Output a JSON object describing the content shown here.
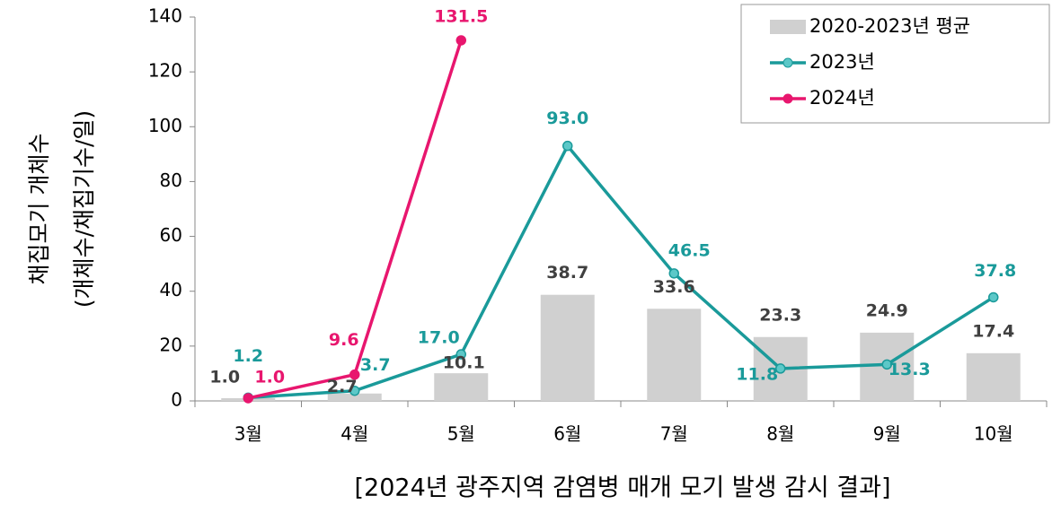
{
  "chart_data": {
    "type": "bar_line",
    "title": "[2024년 광주지역 감염병 매개 모기 발생 감시 결과]",
    "ylabel": [
      "채집모기 개체수",
      "(개체수/채집기수/일)"
    ],
    "categories": [
      "3월",
      "4월",
      "5월",
      "6월",
      "7월",
      "8월",
      "9월",
      "10월"
    ],
    "ylim": [
      0,
      140
    ],
    "yticks": [
      0,
      20,
      40,
      60,
      80,
      100,
      120,
      140
    ],
    "legend": "upper right",
    "series": [
      {
        "name": "2020-2023년 평균",
        "type": "bar",
        "color": "#d0d0d0",
        "label_color": "#404040",
        "values": [
          1.0,
          2.7,
          10.1,
          38.7,
          33.6,
          23.3,
          24.9,
          17.4
        ],
        "value_labels": [
          "1.0",
          "2.7",
          "10.1",
          "38.7",
          "33.6",
          "23.3",
          "24.9",
          "17.4"
        ]
      },
      {
        "name": "2023년",
        "type": "line",
        "color": "#1a9a9a",
        "values": [
          1.2,
          3.7,
          17.0,
          93.0,
          46.5,
          11.8,
          13.3,
          37.8
        ],
        "value_labels": [
          "1.2",
          "3.7",
          "17.0",
          "93.0",
          "46.5",
          "11.8",
          "13.3",
          "37.8"
        ]
      },
      {
        "name": "2024년",
        "type": "line",
        "color": "#e8166e",
        "values": [
          1.0,
          9.6,
          131.5,
          null,
          null,
          null,
          null,
          null
        ],
        "value_labels": [
          "1.0",
          "9.6",
          "131.5",
          null,
          null,
          null,
          null,
          null
        ]
      }
    ]
  }
}
